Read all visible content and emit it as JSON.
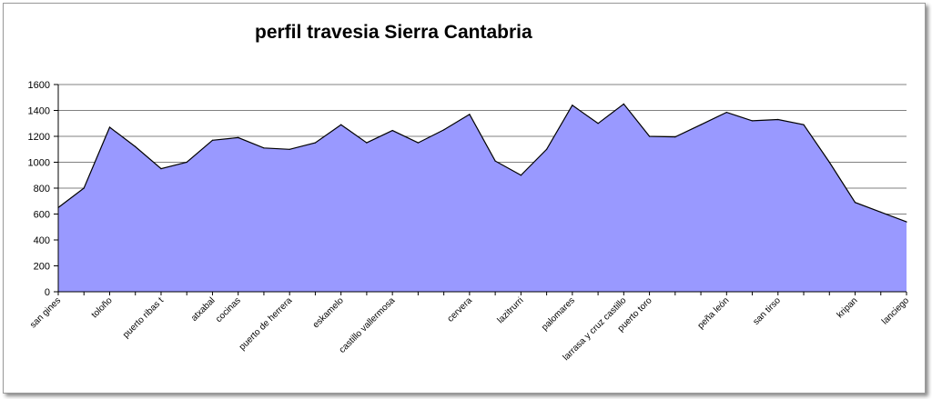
{
  "chart_data": {
    "type": "area",
    "title": "perfil travesia Sierra Cantabria",
    "xlabel": "",
    "ylabel": "",
    "ylim": [
      0,
      1600
    ],
    "yticks": [
      0,
      200,
      400,
      600,
      800,
      1000,
      1200,
      1400,
      1600
    ],
    "grid": true,
    "legend": "none",
    "fill_color": "#9999ff",
    "line_color": "#000000",
    "profile": [
      {
        "label": "san gines",
        "value": 650
      },
      {
        "label": "",
        "value": 800
      },
      {
        "label": "toloño",
        "value": 1270
      },
      {
        "label": "",
        "value": 1120
      },
      {
        "label": "puerto ribas t",
        "value": 950
      },
      {
        "label": "",
        "value": 1000
      },
      {
        "label": "atxabal",
        "value": 1170
      },
      {
        "label": "cocinas",
        "value": 1190
      },
      {
        "label": "",
        "value": 1110
      },
      {
        "label": "puerto de herrera",
        "value": 1100
      },
      {
        "label": "",
        "value": 1150
      },
      {
        "label": "eskamelo",
        "value": 1290
      },
      {
        "label": "",
        "value": 1150
      },
      {
        "label": "castillo vallermosa",
        "value": 1245
      },
      {
        "label": "",
        "value": 1150
      },
      {
        "label": "",
        "value": 1250
      },
      {
        "label": "cervera",
        "value": 1370
      },
      {
        "label": "",
        "value": 1010
      },
      {
        "label": "lazitrurri",
        "value": 900
      },
      {
        "label": "",
        "value": 1100
      },
      {
        "label": "palomares",
        "value": 1440
      },
      {
        "label": "",
        "value": 1300
      },
      {
        "label": "larrasa y cruz castillo",
        "value": 1450
      },
      {
        "label": "puerto toro",
        "value": 1200
      },
      {
        "label": "",
        "value": 1195
      },
      {
        "label": "",
        "value": 1290
      },
      {
        "label": "peña león",
        "value": 1385
      },
      {
        "label": "",
        "value": 1320
      },
      {
        "label": "san tirso",
        "value": 1330
      },
      {
        "label": "",
        "value": 1290
      },
      {
        "label": "",
        "value": 1000
      },
      {
        "label": "kripan",
        "value": 690
      },
      {
        "label": "",
        "value": 615
      },
      {
        "label": "lanciego",
        "value": 540
      }
    ]
  }
}
